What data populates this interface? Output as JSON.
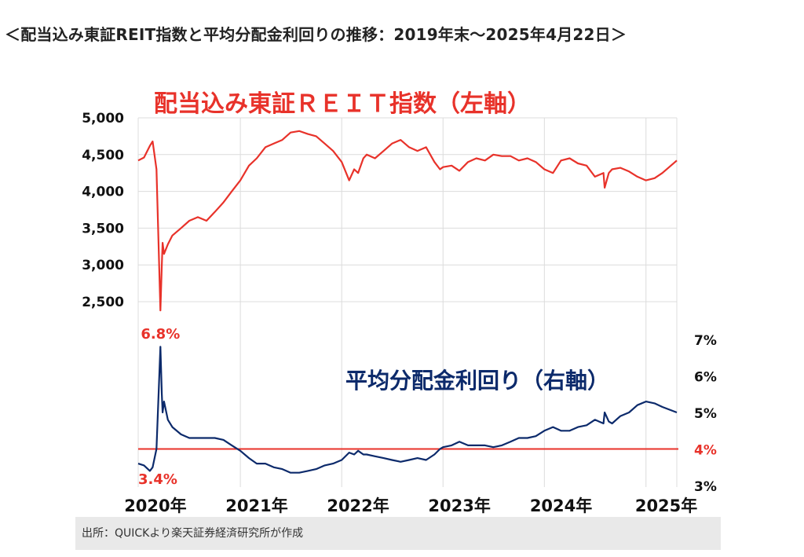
{
  "page": {
    "title": "＜配当込み東証REIT指数と平均分配金利回りの推移：2019年末〜2025年4月22日＞",
    "source": "出所：QUICKより楽天証券経済研究所が作成"
  },
  "chart_data": [
    {
      "type": "line",
      "title": "配当込み東証ＲＥＩＴ指数（左軸）",
      "title_color": "#e8322a",
      "axis": "left",
      "ylim": [
        2500,
        5000
      ],
      "y_ticks": [
        "5,000",
        "4,500",
        "4,000",
        "3,500",
        "3,000",
        "2,500"
      ],
      "y_tick_values": [
        5000,
        4500,
        4000,
        3500,
        3000,
        2500
      ],
      "color": "#e8322a",
      "x": [
        "2019-12-30",
        "2020-01-20",
        "2020-02-10",
        "2020-02-20",
        "2020-03-05",
        "2020-03-19",
        "2020-03-24",
        "2020-03-27",
        "2020-04-01",
        "2020-04-15",
        "2020-05-01",
        "2020-06-01",
        "2020-07-01",
        "2020-08-01",
        "2020-09-01",
        "2020-10-01",
        "2020-11-01",
        "2020-12-01",
        "2021-01-01",
        "2021-02-01",
        "2021-03-01",
        "2021-04-01",
        "2021-05-01",
        "2021-06-01",
        "2021-07-01",
        "2021-08-01",
        "2021-09-01",
        "2021-10-01",
        "2021-11-01",
        "2021-12-01",
        "2022-01-01",
        "2022-01-28",
        "2022-02-15",
        "2022-03-01",
        "2022-03-20",
        "2022-04-01",
        "2022-05-01",
        "2022-06-01",
        "2022-07-01",
        "2022-08-01",
        "2022-09-01",
        "2022-10-01",
        "2022-11-01",
        "2022-12-01",
        "2022-12-21",
        "2023-01-01",
        "2023-02-01",
        "2023-03-01",
        "2023-04-01",
        "2023-05-01",
        "2023-06-01",
        "2023-07-01",
        "2023-08-01",
        "2023-09-01",
        "2023-10-01",
        "2023-11-01",
        "2023-12-01",
        "2024-01-01",
        "2024-02-01",
        "2024-03-01",
        "2024-04-01",
        "2024-05-01",
        "2024-06-01",
        "2024-07-01",
        "2024-08-01",
        "2024-08-05",
        "2024-08-20",
        "2024-09-01",
        "2024-10-01",
        "2024-11-01",
        "2024-12-01",
        "2025-01-01",
        "2025-02-01",
        "2025-03-01",
        "2025-04-22"
      ],
      "values": [
        4420,
        4460,
        4620,
        4680,
        4300,
        2380,
        3000,
        3300,
        3150,
        3280,
        3400,
        3500,
        3600,
        3650,
        3600,
        3720,
        3850,
        4000,
        4150,
        4350,
        4450,
        4600,
        4650,
        4700,
        4800,
        4820,
        4780,
        4750,
        4650,
        4550,
        4400,
        4150,
        4300,
        4250,
        4450,
        4500,
        4450,
        4550,
        4650,
        4700,
        4600,
        4550,
        4600,
        4400,
        4300,
        4330,
        4350,
        4280,
        4400,
        4450,
        4420,
        4500,
        4480,
        4480,
        4420,
        4450,
        4400,
        4300,
        4250,
        4420,
        4450,
        4380,
        4350,
        4200,
        4250,
        4050,
        4250,
        4300,
        4320,
        4270,
        4200,
        4150,
        4180,
        4250,
        4420
      ],
      "annotations": []
    },
    {
      "type": "line",
      "title": "平均分配金利回り（右軸）",
      "title_color": "#0c2a6b",
      "axis": "right",
      "ylim": [
        3,
        7
      ],
      "y_ticks": [
        "7%",
        "6%",
        "5%",
        "4%",
        "3%"
      ],
      "y_tick_values": [
        7,
        6,
        5,
        4,
        3
      ],
      "y_tick_colors": [
        "#111111",
        "#111111",
        "#111111",
        "#e8322a",
        "#111111"
      ],
      "color": "#0c2a6b",
      "reference_line": {
        "value": 4,
        "color": "#e8322a"
      },
      "x": [
        "2019-12-30",
        "2020-01-20",
        "2020-02-10",
        "2020-02-20",
        "2020-03-05",
        "2020-03-19",
        "2020-03-24",
        "2020-03-27",
        "2020-04-01",
        "2020-04-15",
        "2020-05-01",
        "2020-06-01",
        "2020-07-01",
        "2020-08-01",
        "2020-09-01",
        "2020-10-01",
        "2020-11-01",
        "2020-12-01",
        "2021-01-01",
        "2021-02-01",
        "2021-03-01",
        "2021-04-01",
        "2021-05-01",
        "2021-06-01",
        "2021-07-01",
        "2021-08-01",
        "2021-09-01",
        "2021-10-01",
        "2021-11-01",
        "2021-12-01",
        "2022-01-01",
        "2022-01-28",
        "2022-02-15",
        "2022-03-01",
        "2022-03-20",
        "2022-04-01",
        "2022-05-01",
        "2022-06-01",
        "2022-07-01",
        "2022-08-01",
        "2022-09-01",
        "2022-10-01",
        "2022-11-01",
        "2022-12-01",
        "2022-12-21",
        "2023-01-01",
        "2023-02-01",
        "2023-03-01",
        "2023-04-01",
        "2023-05-01",
        "2023-06-01",
        "2023-07-01",
        "2023-08-01",
        "2023-09-01",
        "2023-10-01",
        "2023-11-01",
        "2023-12-01",
        "2024-01-01",
        "2024-02-01",
        "2024-03-01",
        "2024-04-01",
        "2024-05-01",
        "2024-06-01",
        "2024-07-01",
        "2024-08-01",
        "2024-08-05",
        "2024-08-20",
        "2024-09-01",
        "2024-10-01",
        "2024-11-01",
        "2024-12-01",
        "2025-01-01",
        "2025-02-01",
        "2025-03-01",
        "2025-04-22"
      ],
      "values": [
        3.6,
        3.55,
        3.4,
        3.5,
        4.0,
        6.8,
        5.5,
        5.0,
        5.3,
        4.8,
        4.6,
        4.4,
        4.3,
        4.3,
        4.3,
        4.3,
        4.25,
        4.1,
        3.95,
        3.75,
        3.6,
        3.6,
        3.5,
        3.45,
        3.35,
        3.35,
        3.4,
        3.45,
        3.55,
        3.6,
        3.7,
        3.9,
        3.85,
        3.95,
        3.85,
        3.85,
        3.8,
        3.75,
        3.7,
        3.65,
        3.7,
        3.75,
        3.7,
        3.85,
        4.0,
        4.05,
        4.1,
        4.2,
        4.1,
        4.1,
        4.1,
        4.05,
        4.1,
        4.2,
        4.3,
        4.3,
        4.35,
        4.5,
        4.6,
        4.5,
        4.5,
        4.6,
        4.65,
        4.8,
        4.7,
        5.0,
        4.75,
        4.7,
        4.9,
        5.0,
        5.2,
        5.3,
        5.25,
        5.15,
        5.0
      ],
      "annotations": [
        {
          "text": "6.8%",
          "color": "#e8322a",
          "at": "peak"
        },
        {
          "text": "3.4%",
          "color": "#e8322a",
          "at": "start"
        }
      ]
    }
  ],
  "x_axis": {
    "labels": [
      "2020年",
      "2021年",
      "2022年",
      "2023年",
      "2024年",
      "2025年"
    ],
    "label_dates": [
      "2020-03-01",
      "2021-03-01",
      "2022-03-01",
      "2023-03-01",
      "2024-03-01",
      "2025-03-15"
    ],
    "grid_dates": [
      "2021-01-01",
      "2022-01-01",
      "2023-01-01",
      "2024-01-01",
      "2025-01-01"
    ],
    "start": "2019-12-30",
    "end": "2025-04-22"
  }
}
